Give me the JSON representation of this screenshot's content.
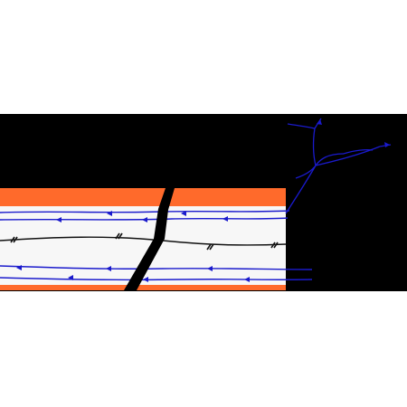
{
  "diagram": {
    "colors": {
      "page_background": "#ffffff",
      "frame_background": "#000000",
      "outer_band": "#ff6a2b",
      "inner_band": "#f7f7f7",
      "thin_line": "#1a1acc",
      "dark_line": "#111111",
      "crack": "#000000"
    },
    "elements": [
      "black-frame",
      "orange-top-band",
      "orange-bottom-band",
      "light-middle-band",
      "blue-thin-lines-top",
      "black-center-line",
      "blue-thin-lines-bottom",
      "diagonal-crack",
      "branching-blue-lines"
    ]
  }
}
